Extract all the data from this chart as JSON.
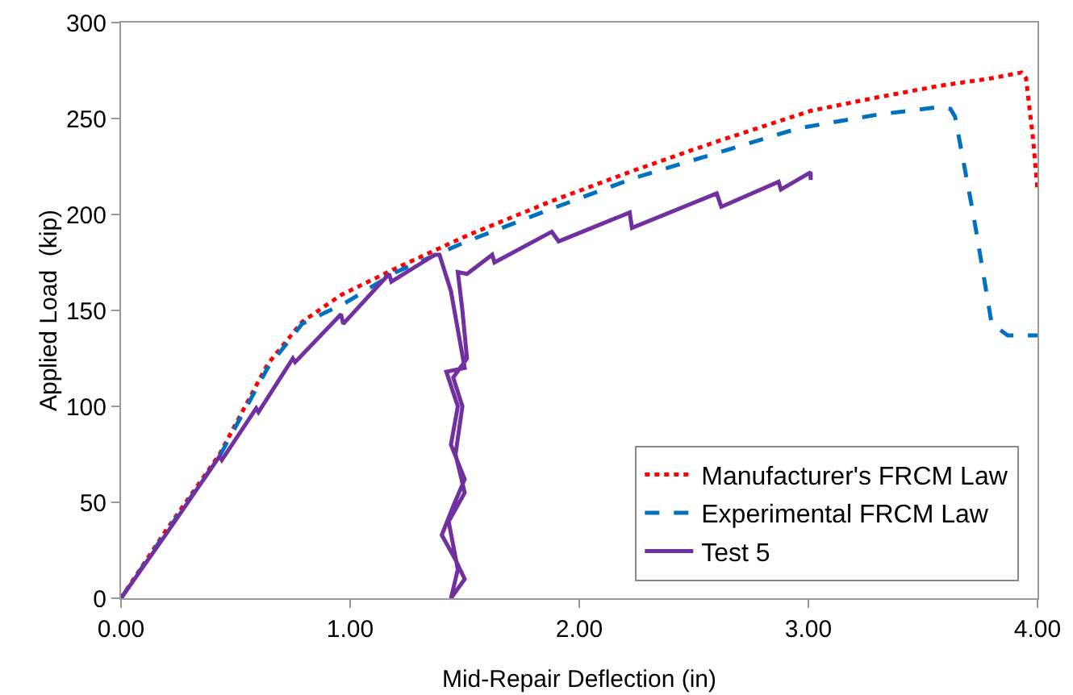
{
  "chart_data": {
    "type": "line",
    "xlabel": "Mid-Repair Deflection (in)",
    "ylabel": "Applied Load  (kip)",
    "xlim": [
      0,
      4
    ],
    "ylim": [
      0,
      300
    ],
    "xticks": [
      {
        "value": 0,
        "label": "0.00"
      },
      {
        "value": 1,
        "label": "1.00"
      },
      {
        "value": 2,
        "label": "2.00"
      },
      {
        "value": 3,
        "label": "3.00"
      },
      {
        "value": 4,
        "label": "4.00"
      }
    ],
    "yticks": [
      0,
      50,
      100,
      150,
      200,
      250,
      300
    ],
    "grid": false,
    "legend": "bottom right",
    "marker": "none",
    "series": [
      {
        "name": "Manufacturer's FRCM Law",
        "color": "#ff0000",
        "line_style": "dotted",
        "x": [
          0,
          0.2,
          0.43,
          0.64,
          0.79,
          0.96,
          1.2,
          1.51,
          1.88,
          2.24,
          2.6,
          3.01,
          3.3,
          3.57,
          3.8,
          3.93,
          3.95,
          3.98,
          4.0
        ],
        "values": [
          0,
          36,
          75,
          122,
          144,
          158,
          172,
          189,
          207,
          223,
          238,
          254,
          261,
          267,
          271,
          274,
          271,
          240,
          213
        ]
      },
      {
        "name": "Experimental FRCM Law",
        "color": "#0070c0",
        "line_style": "dashed",
        "x": [
          0,
          0.2,
          0.43,
          0.64,
          0.79,
          0.98,
          1.2,
          1.51,
          1.88,
          2.24,
          2.6,
          2.96,
          3.3,
          3.57,
          3.62,
          3.64,
          3.72,
          3.8,
          3.87,
          4.0
        ],
        "values": [
          0,
          35,
          74,
          120,
          143,
          154,
          170,
          186,
          203,
          219,
          232,
          245,
          252,
          256,
          255,
          251,
          200,
          143,
          137,
          137
        ]
      },
      {
        "name": "Test 5",
        "color": "#7030a0",
        "line_style": "solid",
        "x": [
          0,
          0.2,
          0.43,
          0.44,
          0.59,
          0.6,
          0.75,
          0.76,
          0.96,
          0.97,
          1.17,
          1.18,
          1.37,
          1.39,
          1.44,
          1.47,
          1.5,
          1.42,
          1.47,
          1.44,
          1.5,
          1.45,
          1.4,
          1.46,
          1.5,
          1.44,
          1.47,
          1.43,
          1.5,
          1.46,
          1.49,
          1.45,
          1.51,
          1.49,
          1.47,
          1.51,
          1.62,
          1.63,
          1.88,
          1.91,
          2.22,
          2.23,
          2.6,
          2.62,
          2.87,
          2.88,
          3.01,
          3.01
        ],
        "values": [
          0,
          34,
          74,
          72,
          99,
          97,
          125,
          123,
          148,
          143,
          169,
          165,
          179,
          179,
          160,
          140,
          120,
          118,
          100,
          80,
          62,
          48,
          33,
          20,
          10,
          0,
          15,
          40,
          55,
          75,
          100,
          115,
          125,
          150,
          170,
          169,
          179,
          175,
          191,
          186,
          201,
          193,
          211,
          204,
          217,
          213,
          222,
          218
        ]
      }
    ]
  }
}
